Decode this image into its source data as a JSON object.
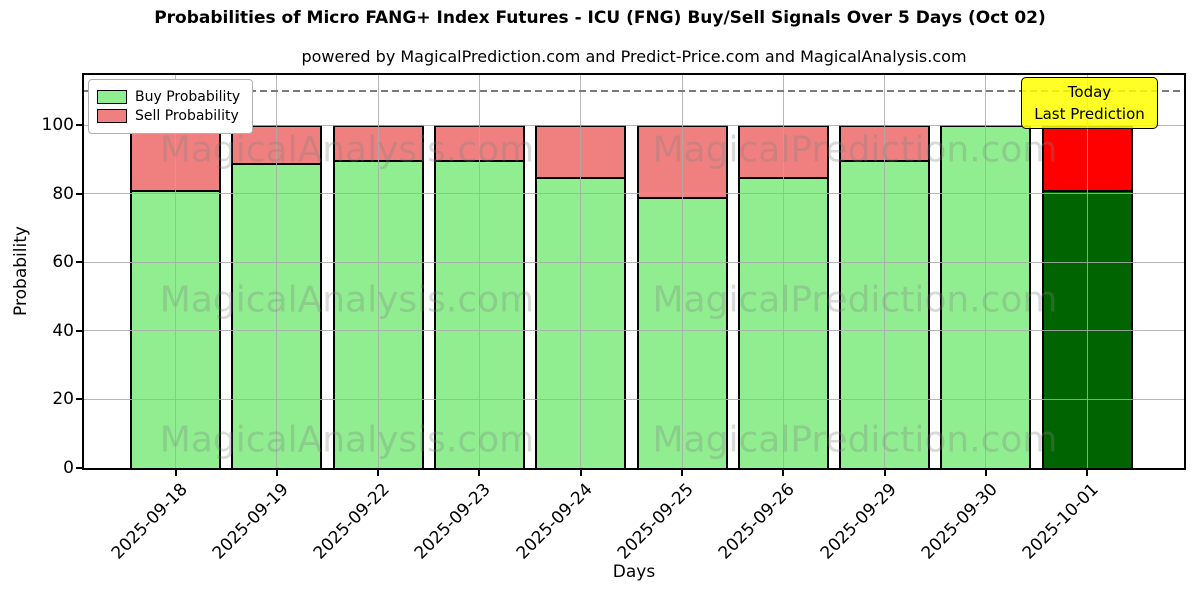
{
  "title": "Probabilities of Micro FANG+ Index Futures - ICU (FNG) Buy/Sell Signals Over 5 Days (Oct 02)",
  "subtitle": "powered by MagicalPrediction.com and Predict-Price.com and MagicalAnalysis.com",
  "legend": {
    "items": [
      {
        "label": "Buy Probability",
        "color": "#90ee90"
      },
      {
        "label": "Sell Probability",
        "color": "#f08080"
      }
    ]
  },
  "annotation": {
    "line1": "Today",
    "line2": "Last Prediction",
    "bg_color": "#ffff00",
    "bg_alpha": 0.85
  },
  "watermarks": {
    "left_text": "MagicalAnalysis.com",
    "right_text": "MagicalPrediction.com"
  },
  "chart_data": {
    "type": "bar",
    "stacked": true,
    "title": "Probabilities of Micro FANG+ Index Futures - ICU (FNG) Buy/Sell Signals Over 5 Days (Oct 02)",
    "xlabel": "Days",
    "ylabel": "Probability",
    "categories": [
      "2025-09-18",
      "2025-09-19",
      "2025-09-22",
      "2025-09-23",
      "2025-09-24",
      "2025-09-25",
      "2025-09-26",
      "2025-09-29",
      "2025-09-30",
      "2025-10-01"
    ],
    "series": [
      {
        "name": "Buy Probability",
        "color": "#90ee90",
        "today_color": "#006400",
        "values": [
          81,
          89,
          90,
          90,
          85,
          79,
          85,
          90,
          100,
          81
        ]
      },
      {
        "name": "Sell Probability",
        "color": "#f08080",
        "today_color": "#ff0000",
        "values": [
          19,
          11,
          10,
          10,
          15,
          21,
          15,
          10,
          0,
          19
        ]
      }
    ],
    "today_index": 9,
    "ylim": [
      0,
      114.7
    ],
    "yticks": [
      0,
      20,
      40,
      60,
      80,
      100
    ],
    "dashed_line_y": 110,
    "grid": true,
    "legend_position": "upper-left",
    "bar_width_ratio": 0.9
  }
}
